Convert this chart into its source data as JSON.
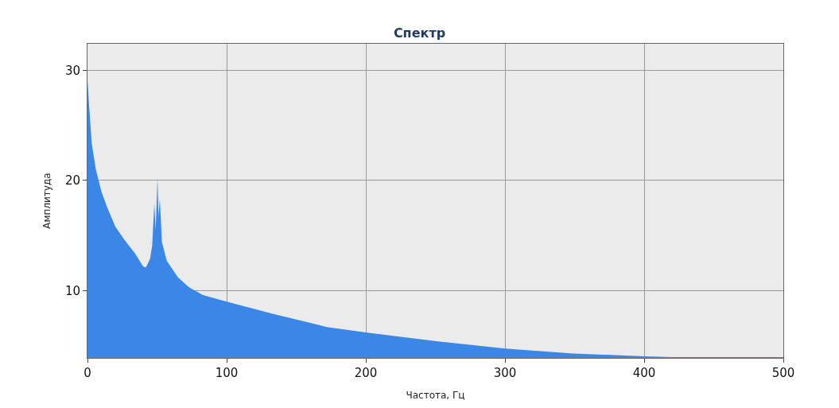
{
  "chart_data": {
    "type": "area",
    "title": "Спектр",
    "xlabel": "Частота, Гц",
    "ylabel": "Амплитуда",
    "x": [
      0,
      1,
      3,
      6,
      10,
      14,
      20,
      26,
      34,
      40,
      42,
      45,
      46.5,
      48,
      49,
      50.3,
      51,
      52,
      53.5,
      57,
      65,
      73,
      83,
      100,
      133,
      166,
      172,
      200,
      252,
      300,
      349,
      400,
      420,
      460,
      500
    ],
    "series": [
      {
        "color": "#3b87e8",
        "values": [
          29.1,
          27.1,
          23.4,
          21.0,
          19.0,
          17.6,
          15.8,
          14.7,
          13.4,
          12.2,
          12.1,
          12.9,
          14.1,
          17.9,
          15.5,
          20.2,
          16.7,
          18.3,
          14.4,
          12.7,
          11.2,
          10.3,
          9.6,
          9.0,
          7.9,
          6.9,
          6.7,
          6.2,
          5.4,
          4.75,
          4.3,
          4.05,
          3.97,
          3.97,
          3.97
        ]
      }
    ],
    "xlim": [
      0,
      500
    ],
    "xticks": [
      0,
      100,
      200,
      300,
      400,
      500
    ],
    "ylim": [
      3.9,
      32.4
    ],
    "yticks": [
      10,
      20,
      30
    ],
    "grid": true
  }
}
